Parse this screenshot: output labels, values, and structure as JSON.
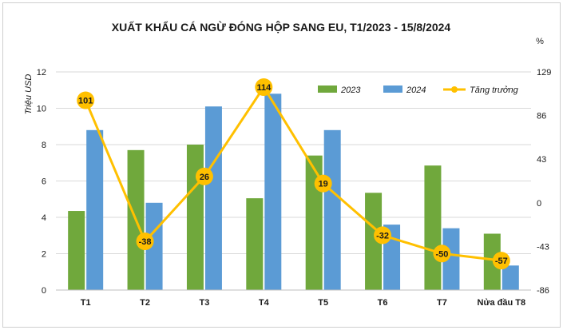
{
  "chart_data": {
    "type": "bar",
    "title": "XUẤT KHẨU CÁ NGỪ ĐÓNG HỘP SANG EU, T1/2023 - 15/8/2024",
    "ylabel": "Triệu USD",
    "y2label": "%",
    "categories": [
      "T1",
      "T2",
      "T3",
      "T4",
      "T5",
      "T6",
      "T7",
      "Nửa đầu T8"
    ],
    "ylim": [
      0,
      12
    ],
    "yticks": [
      "0",
      "2",
      "4",
      "6",
      "8",
      "10",
      "12"
    ],
    "y2lim": [
      -86,
      129
    ],
    "y2ticks": [
      "-86",
      "-43",
      "0",
      "43",
      "86",
      "129"
    ],
    "legend_position": "top-right",
    "colors": {
      "2023": "#70a83c",
      "2024": "#5b9bd5",
      "growth": "#ffc000"
    },
    "series": [
      {
        "name": "2023",
        "type": "bar",
        "axis": "left",
        "values": [
          4.35,
          7.7,
          8.0,
          5.05,
          7.4,
          5.35,
          6.85,
          3.1
        ]
      },
      {
        "name": "2024",
        "type": "bar",
        "axis": "left",
        "values": [
          8.8,
          4.8,
          10.1,
          10.8,
          8.8,
          3.6,
          3.4,
          1.35
        ]
      },
      {
        "name": "Tăng trưởng",
        "type": "line",
        "axis": "right",
        "values": [
          101,
          -38,
          26,
          114,
          19,
          -32,
          -50,
          -57
        ]
      }
    ]
  }
}
